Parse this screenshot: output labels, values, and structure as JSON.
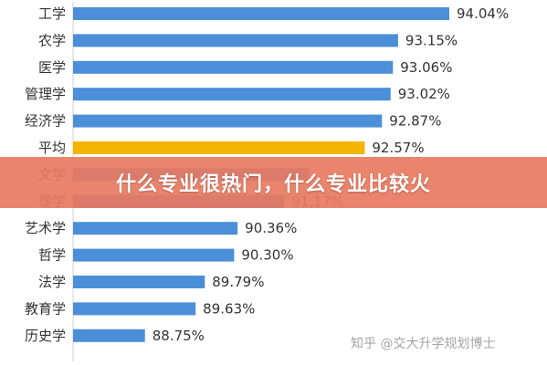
{
  "banner": {
    "title": "什么专业很热门，什么专业比较火"
  },
  "watermark": {
    "text": "知乎 @交大升学规划博士"
  },
  "colors": {
    "bar": "#4a8fd8",
    "highlight": "#f5b400",
    "text": "#333333",
    "banner": "#e87a60"
  },
  "chart_data": {
    "type": "bar",
    "orientation": "horizontal",
    "categories": [
      "工学",
      "农学",
      "医学",
      "管理学",
      "经济学",
      "平均",
      "文学",
      "理学",
      "艺术学",
      "哲学",
      "法学",
      "教育学",
      "历史学"
    ],
    "values": [
      94.04,
      93.15,
      93.06,
      93.02,
      92.87,
      92.57,
      91.6,
      91.17,
      90.36,
      90.3,
      89.79,
      89.63,
      88.75
    ],
    "value_labels": [
      "94.04%",
      "93.15%",
      "93.06%",
      "93.02%",
      "92.87%",
      "92.57%",
      "",
      "91.17%",
      "90.36%",
      "90.30%",
      "89.79%",
      "89.63%",
      "88.75%"
    ],
    "highlight_category": "平均",
    "xlim": [
      87.5,
      94.04
    ],
    "grid": false,
    "legend": "none",
    "title": "",
    "xlabel": "",
    "ylabel": ""
  }
}
